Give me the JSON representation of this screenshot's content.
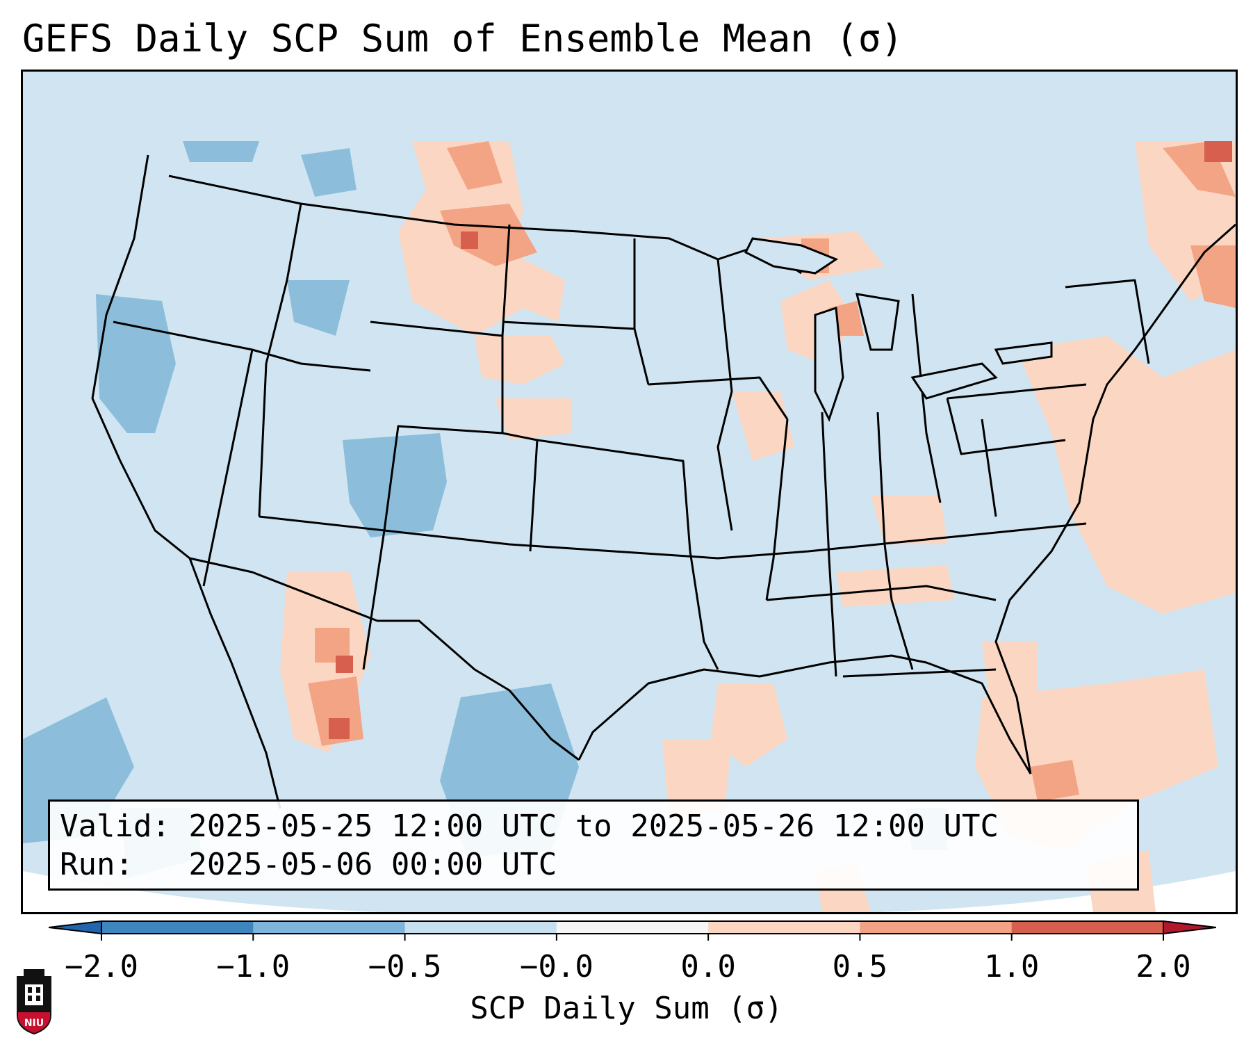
{
  "title": "GEFS Daily SCP Sum of Ensemble Mean (σ)",
  "info": {
    "valid_line": "Valid: 2025-05-25 12:00 UTC to 2025-05-26 12:00 UTC",
    "run_line": "Run:   2025-05-06 00:00 UTC"
  },
  "colorbar": {
    "label": "SCP Daily Sum (σ)",
    "ticks": [
      "−2.0",
      "−1.0",
      "−0.5",
      "−0.0",
      "0.0",
      "0.5",
      "1.0",
      "2.0"
    ],
    "bin_colors": [
      "#3f86bf",
      "#7fb5da",
      "#c7e0ef",
      "#f6f6f6",
      "#fbd6c1",
      "#f2a383",
      "#d6604d"
    ],
    "extend_low_color": "#2166ac",
    "extend_high_color": "#b2182b"
  },
  "map": {
    "background_color": "#d0e5f1",
    "positive_colors": [
      "#fbd7c3",
      "#f3a485",
      "#d6604d"
    ],
    "negative_colors": [
      "#a7cde4",
      "#8cbedc"
    ],
    "borders": [
      "country-borders",
      "state-borders",
      "coastlines"
    ]
  },
  "logo": {
    "text": "NIU",
    "color": "#c8102e"
  }
}
